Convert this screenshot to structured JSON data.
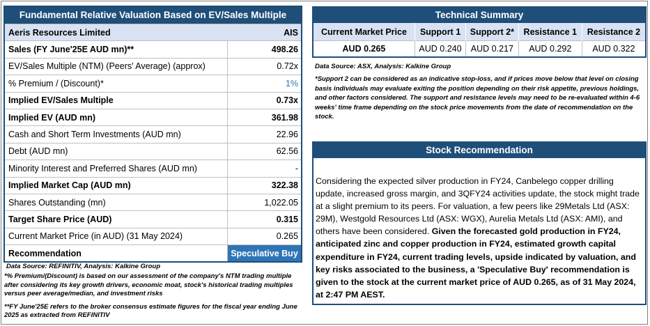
{
  "valuation": {
    "title": "Fundamental Relative Valuation Based on EV/Sales Multiple",
    "company": "Aeris Resources Limited",
    "ticker": "AIS",
    "rows": [
      {
        "label": "Sales (FY June'25E AUD mn)**",
        "value": "498.26",
        "bold": true
      },
      {
        "label": "EV/Sales Multiple (NTM)  (Peers' Average) (approx)",
        "value": "0.72x",
        "bold": false
      },
      {
        "label": "% Premium / (Discount)*",
        "value": "1%",
        "bold": false
      },
      {
        "label": "Implied EV/Sales Multiple",
        "value": "0.73x",
        "bold": true
      },
      {
        "label": "Implied EV (AUD mn)",
        "value": "361.98",
        "bold": true
      },
      {
        "label": "Cash and Short Term Investments (AUD mn)",
        "value": "22.96",
        "bold": false
      },
      {
        "label": "Debt (AUD mn)",
        "value": "62.56",
        "bold": false
      },
      {
        "label": "Minority Interest and Preferred Shares (AUD mn)",
        "value": "-",
        "bold": false
      },
      {
        "label": "Implied Market Cap (AUD mn)",
        "value": "322.38",
        "bold": true
      },
      {
        "label": "Shares Outstanding (mn)",
        "value": "1,022.05",
        "bold": false
      },
      {
        "label": "Target Share Price (AUD)",
        "value": "0.315",
        "bold": true
      },
      {
        "label": "Current Market Price (in AUD) (31 May 2024)",
        "value": "0.265",
        "bold": false
      }
    ],
    "recommendation_label": "Recommendation",
    "recommendation_value": "Speculative Buy",
    "source": "Data Source: REFINITIV, Analysis: Kalkine Group",
    "note1": "*% Premium/(Discount) is based on our assessment of the company's NTM trading multiple after considering its key growth drivers, economic moat, stock's historical trading multiples versus peer average/median, and investment risks",
    "note2": "**FY June'25E refers to the broker consensus estimate figures for the fiscal year ending June 2025 as extracted from REFINITIV"
  },
  "technical": {
    "title": "Technical Summary",
    "headers": [
      "Current Market Price",
      "Support 1",
      "Support 2*",
      "Resistance 1",
      "Resistance 2"
    ],
    "values": [
      "AUD 0.265",
      "AUD 0.240",
      "AUD 0.217",
      "AUD 0.292",
      "AUD 0.322"
    ],
    "source": "Data Source: ASX, Analysis: Kalkine Group",
    "note": "*Support 2 can be considered as an indicative stop-loss, and if prices move below that level on closing basis individuals may evaluate exiting the position depending on their risk appetite, previous holdings, and other factors considered. The support and resistance levels may need to be re-evaluated within 4-6 weeks' time frame depending on the stock price movements from the date of recommendation on the stock."
  },
  "stock_recommendation": {
    "title": "Stock Recommendation",
    "text_plain": "Considering the expected silver production in FY24, Canbelego copper drilling update, increased gross margin, and 3QFY24 activities update, the stock might trade at a slight premium to its peers. For valuation, a few peers like 29Metals Ltd (ASX: 29M), Westgold Resources Ltd (ASX: WGX), Aurelia Metals Ltd (ASX: AMI), and others have been considered. ",
    "text_bold": "Given the forecasted gold production in FY24, anticipated zinc and copper production in FY24, estimated growth capital expenditure in FY24, current trading levels, upside indicated by valuation, and key risks associated to the business, a 'Speculative Buy' recommendation is given to the stock at the current market price of AUD 0.265, as of 31 May 2024, at 2:47 PM AEST."
  }
}
